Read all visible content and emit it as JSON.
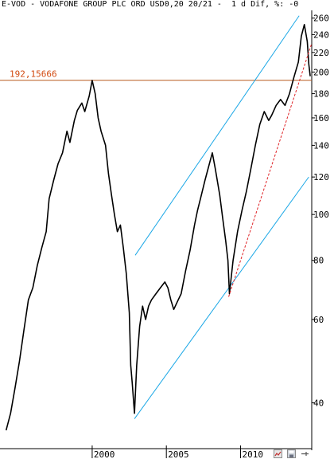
{
  "header": {
    "title": "E-VOD - VODAFONE GROUP PLC ORD USD0,20 20/21 -  1 d Dif, %: -0"
  },
  "colors": {
    "price_line": "#000000",
    "channel": "#1aa7e6",
    "trend_dashed": "#e0262a",
    "level_line": "#b85a1e",
    "level_label": "#d24a10",
    "axis": "#000000"
  },
  "chart_data": {
    "type": "line",
    "title": "",
    "xlabel": "",
    "ylabel": "",
    "y_scale": "log",
    "ylim": [
      32,
      270
    ],
    "xlim": [
      1994.0,
      2014.8
    ],
    "x_ticks": [
      {
        "x": 2000,
        "label": "2000"
      },
      {
        "x": 2005,
        "label": "2005"
      },
      {
        "x": 2010,
        "label": "2010"
      }
    ],
    "y_ticks": [
      {
        "y": 260,
        "label": "260"
      },
      {
        "y": 240,
        "label": "240"
      },
      {
        "y": 220,
        "label": "220"
      },
      {
        "y": 200,
        "label": "200"
      },
      {
        "y": 180,
        "label": "180"
      },
      {
        "y": 160,
        "label": "160"
      },
      {
        "y": 140,
        "label": "140"
      },
      {
        "y": 120,
        "label": "120"
      },
      {
        "y": 100,
        "label": "100"
      },
      {
        "y": 80,
        "label": "80"
      },
      {
        "y": 60,
        "label": "60"
      },
      {
        "y": 40,
        "label": "40"
      }
    ],
    "series": [
      {
        "points": [
          [
            1994.2,
            35
          ],
          [
            1994.5,
            38
          ],
          [
            1994.8,
            43
          ],
          [
            1995.1,
            49
          ],
          [
            1995.4,
            57
          ],
          [
            1995.7,
            66
          ],
          [
            1996.0,
            70
          ],
          [
            1996.3,
            78
          ],
          [
            1996.6,
            85
          ],
          [
            1996.9,
            92
          ],
          [
            1997.1,
            108
          ],
          [
            1997.4,
            118
          ],
          [
            1997.7,
            128
          ],
          [
            1998.0,
            135
          ],
          [
            1998.3,
            150
          ],
          [
            1998.5,
            142
          ],
          [
            1998.8,
            158
          ],
          [
            1999.0,
            166
          ],
          [
            1999.3,
            172
          ],
          [
            1999.5,
            165
          ],
          [
            1999.8,
            178
          ],
          [
            2000.0,
            192
          ],
          [
            2000.2,
            180
          ],
          [
            2000.4,
            160
          ],
          [
            2000.6,
            150
          ],
          [
            2000.9,
            140
          ],
          [
            2001.1,
            122
          ],
          [
            2001.3,
            110
          ],
          [
            2001.5,
            100
          ],
          [
            2001.7,
            92
          ],
          [
            2001.9,
            95
          ],
          [
            2002.1,
            85
          ],
          [
            2002.3,
            75
          ],
          [
            2002.5,
            62
          ],
          [
            2002.6,
            48
          ],
          [
            2002.7,
            44
          ],
          [
            2002.85,
            38
          ],
          [
            2003.0,
            48
          ],
          [
            2003.2,
            58
          ],
          [
            2003.4,
            64
          ],
          [
            2003.6,
            60
          ],
          [
            2003.8,
            64
          ],
          [
            2004.0,
            66
          ],
          [
            2004.3,
            68
          ],
          [
            2004.6,
            70
          ],
          [
            2004.9,
            72
          ],
          [
            2005.1,
            70
          ],
          [
            2005.3,
            66
          ],
          [
            2005.5,
            63
          ],
          [
            2005.8,
            66
          ],
          [
            2006.0,
            68
          ],
          [
            2006.3,
            76
          ],
          [
            2006.6,
            84
          ],
          [
            2006.9,
            95
          ],
          [
            2007.1,
            102
          ],
          [
            2007.3,
            108
          ],
          [
            2007.6,
            118
          ],
          [
            2007.9,
            128
          ],
          [
            2008.1,
            135
          ],
          [
            2008.3,
            125
          ],
          [
            2008.6,
            110
          ],
          [
            2008.8,
            98
          ],
          [
            2009.0,
            88
          ],
          [
            2009.15,
            80
          ],
          [
            2009.25,
            68
          ],
          [
            2009.5,
            80
          ],
          [
            2009.8,
            92
          ],
          [
            2010.1,
            102
          ],
          [
            2010.4,
            112
          ],
          [
            2010.7,
            125
          ],
          [
            2011.0,
            140
          ],
          [
            2011.3,
            155
          ],
          [
            2011.6,
            165
          ],
          [
            2011.9,
            158
          ],
          [
            2012.1,
            162
          ],
          [
            2012.4,
            170
          ],
          [
            2012.7,
            175
          ],
          [
            2013.0,
            170
          ],
          [
            2013.3,
            180
          ],
          [
            2013.6,
            195
          ],
          [
            2013.9,
            210
          ],
          [
            2014.1,
            238
          ],
          [
            2014.3,
            252
          ],
          [
            2014.5,
            232
          ],
          [
            2014.6,
            208
          ],
          [
            2014.7,
            196
          ]
        ]
      }
    ],
    "channel_upper": [
      [
        2002.9,
        82
      ],
      [
        2013.95,
        263
      ]
    ],
    "channel_lower": [
      [
        2002.85,
        37
      ],
      [
        2014.6,
        120
      ]
    ],
    "trend_dashed": [
      [
        2009.2,
        67
      ],
      [
        2014.8,
        230
      ]
    ],
    "level": {
      "value": 192.15666,
      "label": "192,15666"
    }
  }
}
